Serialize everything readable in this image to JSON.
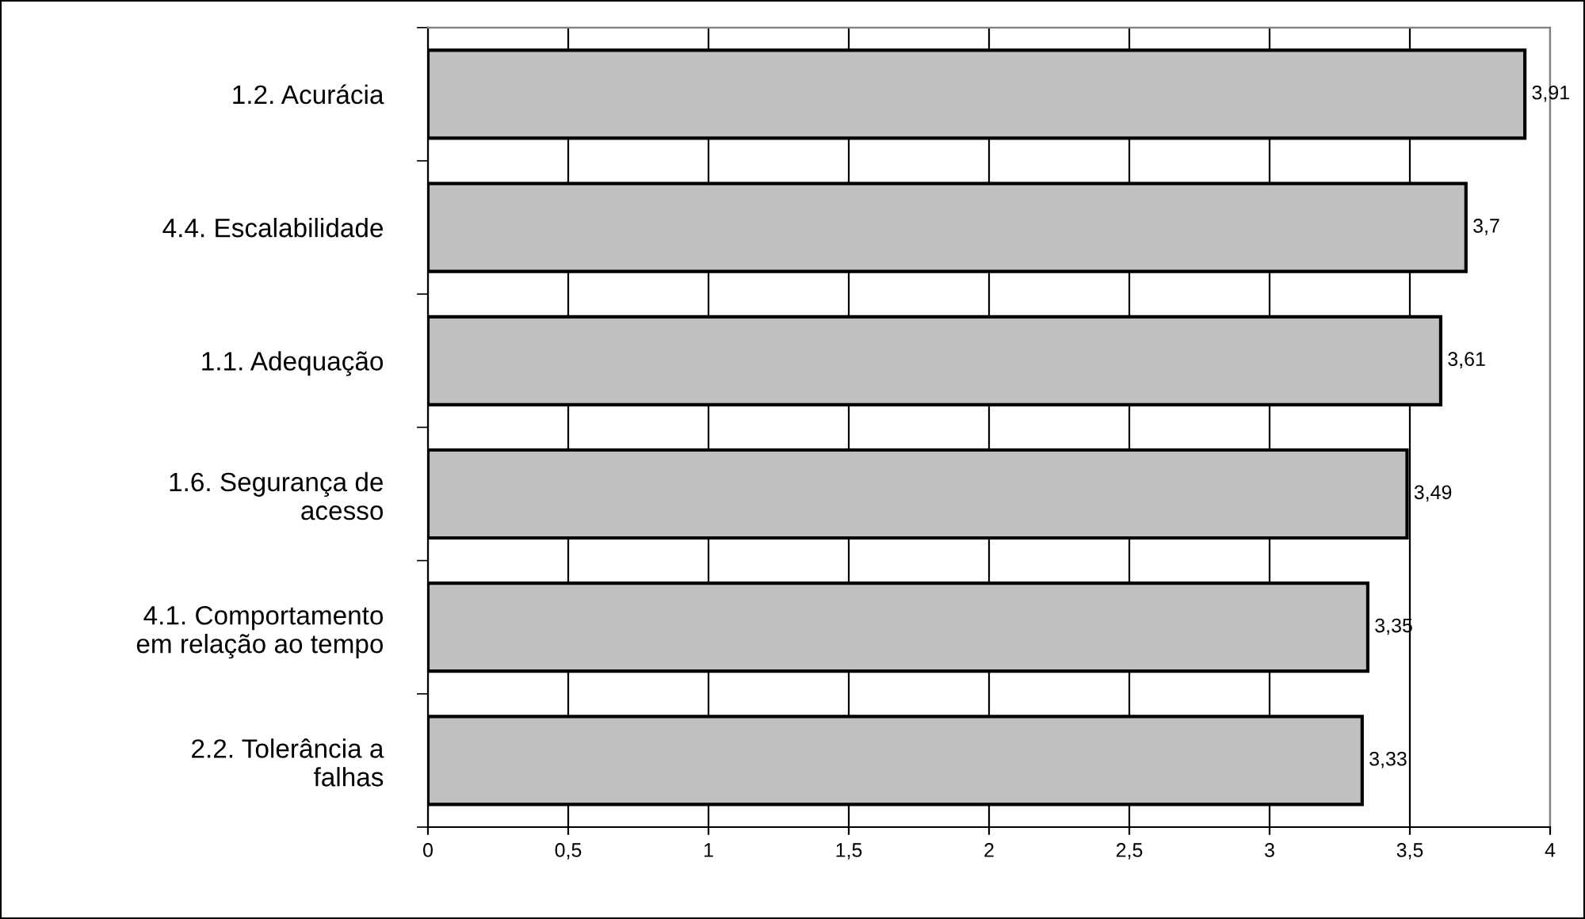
{
  "chart_data": {
    "type": "bar",
    "orientation": "horizontal",
    "categories": [
      "1.2. Acurácia",
      "4.4. Escalabilidade",
      "1.1. Adequação",
      "1.6. Segurança de\nacesso",
      "4.1. Comportamento\nem relação ao tempo",
      "2.2. Tolerância a\nfalhas"
    ],
    "values": [
      3.91,
      3.7,
      3.61,
      3.49,
      3.35,
      3.33
    ],
    "value_labels": [
      "3,91",
      "3,7",
      "3,61",
      "3,49",
      "3,35",
      "3,33"
    ],
    "color": "#c0c0c0",
    "xlim": [
      0,
      4
    ],
    "xticks": [
      0,
      {
        "value": 0.5,
        "label": "0,5"
      },
      1,
      {
        "value": 1.5,
        "label": "1,5"
      },
      2,
      {
        "value": 2.5,
        "label": "2,5"
      },
      3,
      {
        "value": 3.5,
        "label": "3,5"
      },
      4
    ],
    "grid": "x"
  }
}
